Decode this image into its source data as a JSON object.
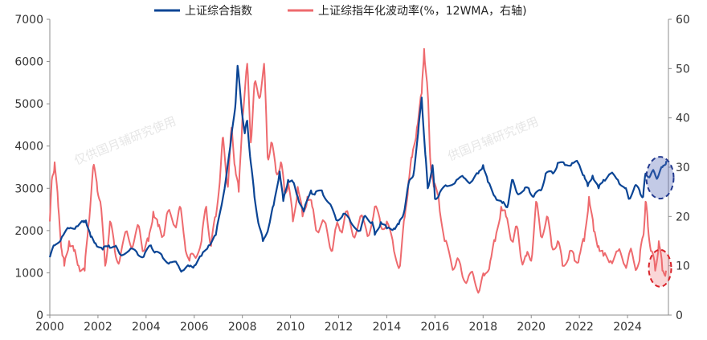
{
  "chart_data": {
    "type": "line",
    "title": "",
    "xlabel": "",
    "ylabel_left": "",
    "ylabel_right": "",
    "x_range": [
      2000,
      2025.7
    ],
    "x_ticks": [
      "2000",
      "2002",
      "2004",
      "2006",
      "2008",
      "2010",
      "2012",
      "2014",
      "2016",
      "2018",
      "2020",
      "2022",
      "2024"
    ],
    "y_left_range": [
      0,
      7000
    ],
    "y_left_ticks": [
      "0",
      "1000",
      "2000",
      "3000",
      "4000",
      "5000",
      "6000",
      "7000"
    ],
    "y_right_range": [
      0,
      60
    ],
    "y_right_ticks": [
      "0",
      "10",
      "20",
      "30",
      "40",
      "50",
      "60"
    ],
    "watermarks": [
      "仅供国月辅研究使用",
      "供国月辅研究使用"
    ],
    "series": [
      {
        "name": "上证综合指数",
        "axis": "left",
        "color": "#0b4595",
        "points": [
          [
            2000.0,
            1370
          ],
          [
            2000.2,
            1650
          ],
          [
            2000.5,
            1850
          ],
          [
            2000.8,
            2050
          ],
          [
            2001.1,
            2100
          ],
          [
            2001.4,
            2200
          ],
          [
            2001.5,
            2240
          ],
          [
            2001.7,
            1850
          ],
          [
            2001.9,
            1700
          ],
          [
            2002.2,
            1550
          ],
          [
            2002.45,
            1650
          ],
          [
            2002.7,
            1620
          ],
          [
            2002.9,
            1450
          ],
          [
            2003.3,
            1530
          ],
          [
            2003.6,
            1500
          ],
          [
            2003.9,
            1380
          ],
          [
            2004.2,
            1650
          ],
          [
            2004.4,
            1500
          ],
          [
            2004.7,
            1350
          ],
          [
            2005.0,
            1250
          ],
          [
            2005.3,
            1200
          ],
          [
            2005.5,
            1050
          ],
          [
            2005.8,
            1150
          ],
          [
            2006.0,
            1170
          ],
          [
            2006.3,
            1400
          ],
          [
            2006.6,
            1650
          ],
          [
            2006.9,
            1900
          ],
          [
            2007.2,
            2800
          ],
          [
            2007.5,
            4000
          ],
          [
            2007.7,
            4900
          ],
          [
            2007.8,
            5900
          ],
          [
            2007.95,
            5000
          ],
          [
            2008.1,
            4300
          ],
          [
            2008.2,
            4600
          ],
          [
            2008.35,
            3600
          ],
          [
            2008.5,
            2800
          ],
          [
            2008.7,
            2100
          ],
          [
            2008.85,
            1750
          ],
          [
            2009.1,
            2100
          ],
          [
            2009.3,
            2600
          ],
          [
            2009.55,
            3400
          ],
          [
            2009.7,
            2700
          ],
          [
            2009.9,
            3200
          ],
          [
            2010.1,
            3150
          ],
          [
            2010.3,
            2800
          ],
          [
            2010.55,
            2450
          ],
          [
            2010.85,
            2950
          ],
          [
            2011.0,
            2850
          ],
          [
            2011.3,
            2950
          ],
          [
            2011.6,
            2650
          ],
          [
            2011.9,
            2250
          ],
          [
            2012.2,
            2400
          ],
          [
            2012.5,
            2200
          ],
          [
            2012.9,
            2000
          ],
          [
            2013.1,
            2350
          ],
          [
            2013.4,
            2200
          ],
          [
            2013.5,
            1900
          ],
          [
            2013.75,
            2200
          ],
          [
            2014.0,
            2050
          ],
          [
            2014.3,
            2050
          ],
          [
            2014.5,
            2150
          ],
          [
            2014.7,
            2400
          ],
          [
            2014.9,
            3100
          ],
          [
            2015.1,
            3300
          ],
          [
            2015.3,
            4300
          ],
          [
            2015.45,
            5150
          ],
          [
            2015.6,
            3800
          ],
          [
            2015.7,
            3000
          ],
          [
            2015.9,
            3550
          ],
          [
            2016.0,
            2750
          ],
          [
            2016.2,
            2900
          ],
          [
            2016.5,
            3050
          ],
          [
            2016.9,
            3200
          ],
          [
            2017.2,
            3250
          ],
          [
            2017.5,
            3150
          ],
          [
            2017.8,
            3350
          ],
          [
            2018.0,
            3550
          ],
          [
            2018.2,
            3150
          ],
          [
            2018.5,
            2800
          ],
          [
            2018.8,
            2650
          ],
          [
            2019.0,
            2550
          ],
          [
            2019.2,
            3200
          ],
          [
            2019.4,
            2900
          ],
          [
            2019.7,
            2950
          ],
          [
            2019.9,
            3000
          ],
          [
            2020.1,
            2800
          ],
          [
            2020.4,
            2950
          ],
          [
            2020.6,
            3350
          ],
          [
            2020.9,
            3350
          ],
          [
            2021.1,
            3600
          ],
          [
            2021.4,
            3550
          ],
          [
            2021.7,
            3600
          ],
          [
            2021.95,
            3600
          ],
          [
            2022.2,
            3300
          ],
          [
            2022.35,
            3050
          ],
          [
            2022.55,
            3300
          ],
          [
            2022.8,
            3000
          ],
          [
            2023.0,
            3200
          ],
          [
            2023.3,
            3350
          ],
          [
            2023.6,
            3200
          ],
          [
            2023.9,
            3000
          ],
          [
            2024.05,
            2750
          ],
          [
            2024.3,
            3050
          ],
          [
            2024.5,
            2950
          ],
          [
            2024.65,
            2800
          ],
          [
            2024.75,
            3350
          ],
          [
            2024.95,
            3300
          ],
          [
            2025.1,
            3400
          ],
          [
            2025.25,
            3250
          ],
          [
            2025.45,
            3500
          ],
          [
            2025.62,
            3650
          ]
        ]
      },
      {
        "name": "上证综指年化波动率(%，12WMA，右轴)",
        "axis": "right",
        "color": "#ee6a6e",
        "points": [
          [
            2000.0,
            19
          ],
          [
            2000.1,
            28
          ],
          [
            2000.2,
            31
          ],
          [
            2000.35,
            22
          ],
          [
            2000.5,
            13
          ],
          [
            2000.6,
            10
          ],
          [
            2000.8,
            15
          ],
          [
            2001.0,
            13
          ],
          [
            2001.2,
            10
          ],
          [
            2001.45,
            9
          ],
          [
            2001.6,
            18
          ],
          [
            2001.8,
            30
          ],
          [
            2001.95,
            27
          ],
          [
            2002.1,
            23
          ],
          [
            2002.3,
            10
          ],
          [
            2002.5,
            19
          ],
          [
            2002.7,
            13
          ],
          [
            2002.9,
            11
          ],
          [
            2003.2,
            17
          ],
          [
            2003.45,
            14
          ],
          [
            2003.7,
            18
          ],
          [
            2003.9,
            13
          ],
          [
            2004.1,
            15
          ],
          [
            2004.3,
            21
          ],
          [
            2004.5,
            18
          ],
          [
            2004.7,
            16
          ],
          [
            2004.9,
            21
          ],
          [
            2005.2,
            18
          ],
          [
            2005.4,
            22
          ],
          [
            2005.6,
            15
          ],
          [
            2005.8,
            11
          ],
          [
            2006.0,
            12
          ],
          [
            2006.3,
            15
          ],
          [
            2006.5,
            22
          ],
          [
            2006.7,
            14
          ],
          [
            2006.9,
            20
          ],
          [
            2007.1,
            30
          ],
          [
            2007.2,
            36
          ],
          [
            2007.4,
            26
          ],
          [
            2007.55,
            38
          ],
          [
            2007.7,
            30
          ],
          [
            2007.85,
            25
          ],
          [
            2008.0,
            40
          ],
          [
            2008.2,
            51
          ],
          [
            2008.35,
            35
          ],
          [
            2008.5,
            47
          ],
          [
            2008.7,
            44
          ],
          [
            2008.9,
            51
          ],
          [
            2009.05,
            32
          ],
          [
            2009.2,
            35
          ],
          [
            2009.4,
            29
          ],
          [
            2009.6,
            31
          ],
          [
            2009.75,
            25
          ],
          [
            2009.9,
            27
          ],
          [
            2010.1,
            19
          ],
          [
            2010.3,
            26
          ],
          [
            2010.5,
            20
          ],
          [
            2010.7,
            24
          ],
          [
            2010.9,
            22
          ],
          [
            2011.1,
            17
          ],
          [
            2011.4,
            19
          ],
          [
            2011.7,
            13
          ],
          [
            2011.9,
            18
          ],
          [
            2012.1,
            17
          ],
          [
            2012.3,
            21
          ],
          [
            2012.6,
            16
          ],
          [
            2012.9,
            20
          ],
          [
            2013.2,
            16
          ],
          [
            2013.5,
            22
          ],
          [
            2013.75,
            18
          ],
          [
            2014.0,
            19
          ],
          [
            2014.3,
            13
          ],
          [
            2014.55,
            10
          ],
          [
            2014.75,
            20
          ],
          [
            2014.9,
            27
          ],
          [
            2015.05,
            32
          ],
          [
            2015.25,
            38
          ],
          [
            2015.45,
            45
          ],
          [
            2015.55,
            54
          ],
          [
            2015.7,
            45
          ],
          [
            2015.8,
            32
          ],
          [
            2015.95,
            26
          ],
          [
            2016.15,
            24
          ],
          [
            2016.4,
            15
          ],
          [
            2016.7,
            10
          ],
          [
            2016.9,
            11
          ],
          [
            2017.1,
            9
          ],
          [
            2017.35,
            7
          ],
          [
            2017.6,
            8
          ],
          [
            2017.85,
            5
          ],
          [
            2018.05,
            8
          ],
          [
            2018.3,
            11
          ],
          [
            2018.5,
            15
          ],
          [
            2018.75,
            22
          ],
          [
            2018.95,
            20
          ],
          [
            2019.2,
            15
          ],
          [
            2019.4,
            18
          ],
          [
            2019.6,
            11
          ],
          [
            2019.8,
            12
          ],
          [
            2020.0,
            11
          ],
          [
            2020.2,
            23
          ],
          [
            2020.4,
            16
          ],
          [
            2020.65,
            20
          ],
          [
            2020.85,
            14
          ],
          [
            2021.1,
            15
          ],
          [
            2021.3,
            10
          ],
          [
            2021.6,
            13
          ],
          [
            2021.8,
            11
          ],
          [
            2022.0,
            12
          ],
          [
            2022.2,
            15
          ],
          [
            2022.4,
            24
          ],
          [
            2022.6,
            17
          ],
          [
            2022.8,
            14
          ],
          [
            2023.0,
            12
          ],
          [
            2023.3,
            11
          ],
          [
            2023.6,
            13
          ],
          [
            2023.9,
            10
          ],
          [
            2024.1,
            13
          ],
          [
            2024.3,
            10
          ],
          [
            2024.5,
            11
          ],
          [
            2024.65,
            16
          ],
          [
            2024.75,
            23
          ],
          [
            2024.85,
            18
          ],
          [
            2025.0,
            13
          ],
          [
            2025.15,
            9
          ],
          [
            2025.3,
            15
          ],
          [
            2025.45,
            9
          ],
          [
            2025.6,
            9
          ]
        ]
      }
    ],
    "annotations": [
      {
        "type": "ellipse",
        "series": "上证综合指数",
        "year": 2025.35,
        "value": 3250,
        "note": "blue dashed highlight around latest index level"
      },
      {
        "type": "ellipse",
        "series": "上证综指年化波动率(%，12WMA，右轴)",
        "year": 2025.35,
        "value": 9.5,
        "note": "red dashed highlight around latest volatility"
      }
    ]
  }
}
